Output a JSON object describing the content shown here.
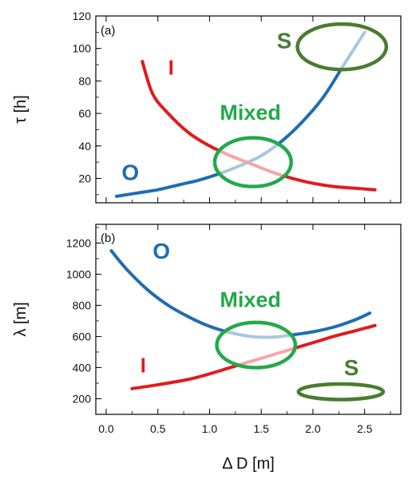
{
  "chart_data": [
    {
      "type": "line",
      "panel_label": "(a)",
      "xlabel": "",
      "ylabel": "τ [h]",
      "xlim": [
        -0.1,
        2.85
      ],
      "ylim": [
        5,
        120
      ],
      "xticks": [
        0.0,
        0.5,
        1.0,
        1.5,
        2.0,
        2.5
      ],
      "yticks": [
        20,
        40,
        60,
        80,
        100,
        120
      ],
      "series": [
        {
          "name": "O",
          "color": "#1f6db3",
          "x": [
            0.1,
            0.3,
            0.5,
            0.7,
            0.9,
            1.1,
            1.3,
            1.5,
            1.7,
            1.9,
            2.1,
            2.3,
            2.5
          ],
          "y": [
            9,
            11,
            13,
            16,
            19,
            23,
            28,
            34,
            43,
            55,
            70,
            90,
            110
          ]
        },
        {
          "name": "I",
          "color": "#e31a1c",
          "x": [
            0.35,
            0.45,
            0.6,
            0.8,
            1.0,
            1.2,
            1.4,
            1.6,
            1.8,
            2.0,
            2.2,
            2.4,
            2.6
          ],
          "y": [
            92,
            72,
            60,
            48,
            40,
            34,
            29,
            24,
            20,
            17,
            15,
            14,
            13
          ]
        }
      ],
      "annotations": [
        {
          "text": "S",
          "x": 1.65,
          "y": 100,
          "color": "#4a7c2f"
        },
        {
          "text": "I",
          "x": 0.6,
          "y": 84,
          "color": "#e31a1c"
        },
        {
          "text": "Mixed",
          "x": 1.1,
          "y": 56,
          "color": "#22a94a"
        },
        {
          "text": "O",
          "x": 0.15,
          "y": 19,
          "color": "#1f6db3"
        }
      ],
      "ellipses": [
        {
          "cx": 2.28,
          "cy": 101,
          "rx": 0.43,
          "ry": 14,
          "color": "#4a7c2f"
        },
        {
          "cx": 1.42,
          "cy": 30,
          "rx": 0.37,
          "ry": 15,
          "color": "#22a94a"
        }
      ]
    },
    {
      "type": "line",
      "panel_label": "(b)",
      "xlabel": "Δ D [m]",
      "ylabel": "λ [m]",
      "xlim": [
        -0.1,
        2.85
      ],
      "ylim": [
        100,
        1320
      ],
      "xticks": [
        0.0,
        0.5,
        1.0,
        1.5,
        2.0,
        2.5
      ],
      "xticklabels": [
        "0.0",
        "0.5",
        "1.0",
        "1.5",
        "2.0",
        "2.5"
      ],
      "yticks": [
        200,
        400,
        600,
        800,
        1000,
        1200
      ],
      "series": [
        {
          "name": "O",
          "color": "#1f6db3",
          "x": [
            0.05,
            0.2,
            0.4,
            0.6,
            0.8,
            1.0,
            1.2,
            1.4,
            1.6,
            1.8,
            2.0,
            2.2,
            2.4,
            2.55
          ],
          "y": [
            1150,
            1030,
            900,
            800,
            725,
            665,
            625,
            600,
            595,
            610,
            630,
            660,
            705,
            750
          ]
        },
        {
          "name": "I",
          "color": "#e31a1c",
          "x": [
            0.25,
            0.5,
            0.8,
            1.0,
            1.2,
            1.4,
            1.6,
            1.8,
            2.0,
            2.2,
            2.4,
            2.6
          ],
          "y": [
            265,
            290,
            325,
            360,
            400,
            440,
            480,
            520,
            560,
            600,
            635,
            670
          ]
        }
      ],
      "annotations": [
        {
          "text": "O",
          "x": 0.45,
          "y": 1100,
          "color": "#1f6db3"
        },
        {
          "text": "Mixed",
          "x": 1.1,
          "y": 790,
          "color": "#22a94a"
        },
        {
          "text": "S",
          "x": 2.3,
          "y": 350,
          "color": "#4a7c2f"
        },
        {
          "text": "I",
          "x": 0.33,
          "y": 370,
          "color": "#e31a1c"
        }
      ],
      "ellipses": [
        {
          "cx": 1.45,
          "cy": 545,
          "rx": 0.38,
          "ry": 145,
          "color": "#22a94a"
        },
        {
          "cx": 2.27,
          "cy": 245,
          "rx": 0.41,
          "ry": 50,
          "color": "#4a7c2f"
        }
      ]
    }
  ]
}
